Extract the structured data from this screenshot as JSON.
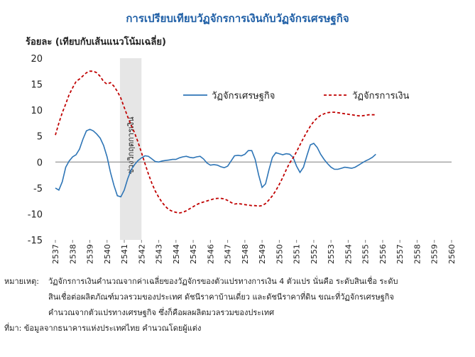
{
  "chart_data": {
    "type": "line",
    "title": "การเปรียบเทียบวัฏจักรการเงินกับวัฏจักรเศรษฐกิจ",
    "ylabel": "ร้อยละ (เทียบกับเส้นแนวโน้มเฉลี่ย)",
    "xlabel": "",
    "ylim": [
      -15,
      20
    ],
    "yticks": [
      -15,
      -10,
      -5,
      0,
      5,
      10,
      15,
      20
    ],
    "xlim": [
      2537,
      2560
    ],
    "categories": [
      "2537",
      "2538",
      "2539",
      "2540",
      "2541",
      "2542",
      "2543",
      "2544",
      "2545",
      "2546",
      "2547",
      "2548",
      "2549",
      "2550",
      "2551",
      "2552",
      "2553",
      "2554",
      "2555",
      "2556",
      "2557",
      "2558",
      "2559",
      "2560"
    ],
    "legend_position": "top-right",
    "grid": false,
    "shaded_region": {
      "label": "ช่วงวิกฤตการเงิน",
      "x_start": 2540.75,
      "x_end": 2542.0,
      "color": "#e6e6e6"
    },
    "series": [
      {
        "name": "วัฏจักรเศรษฐกิจ",
        "color": "#2e75b6",
        "style": "solid",
        "points": [
          [
            2537.0,
            -5.0
          ],
          [
            2537.2,
            -5.4
          ],
          [
            2537.4,
            -3.8
          ],
          [
            2537.6,
            -1.0
          ],
          [
            2537.8,
            0.2
          ],
          [
            2538.0,
            1.0
          ],
          [
            2538.2,
            1.4
          ],
          [
            2538.4,
            2.5
          ],
          [
            2538.6,
            4.4
          ],
          [
            2538.8,
            6.0
          ],
          [
            2539.0,
            6.3
          ],
          [
            2539.2,
            6.0
          ],
          [
            2539.4,
            5.4
          ],
          [
            2539.6,
            4.6
          ],
          [
            2539.8,
            3.2
          ],
          [
            2540.0,
            1.0
          ],
          [
            2540.2,
            -2.0
          ],
          [
            2540.4,
            -4.5
          ],
          [
            2540.6,
            -6.5
          ],
          [
            2540.8,
            -6.7
          ],
          [
            2541.0,
            -5.4
          ],
          [
            2541.2,
            -3.2
          ],
          [
            2541.4,
            -1.5
          ],
          [
            2541.6,
            -0.5
          ],
          [
            2541.8,
            0.3
          ],
          [
            2542.0,
            0.8
          ],
          [
            2542.2,
            1.2
          ],
          [
            2542.4,
            1.1
          ],
          [
            2542.6,
            0.6
          ],
          [
            2542.8,
            0.1
          ],
          [
            2543.0,
            0.0
          ],
          [
            2543.2,
            0.2
          ],
          [
            2543.4,
            0.3
          ],
          [
            2543.6,
            0.4
          ],
          [
            2543.8,
            0.5
          ],
          [
            2544.0,
            0.5
          ],
          [
            2544.2,
            0.8
          ],
          [
            2544.4,
            1.0
          ],
          [
            2544.6,
            1.1
          ],
          [
            2544.8,
            0.9
          ],
          [
            2545.0,
            0.8
          ],
          [
            2545.2,
            1.0
          ],
          [
            2545.4,
            1.1
          ],
          [
            2545.6,
            0.6
          ],
          [
            2545.8,
            -0.2
          ],
          [
            2546.0,
            -0.6
          ],
          [
            2546.2,
            -0.5
          ],
          [
            2546.4,
            -0.6
          ],
          [
            2546.6,
            -0.9
          ],
          [
            2546.8,
            -1.1
          ],
          [
            2547.0,
            -0.8
          ],
          [
            2547.2,
            0.2
          ],
          [
            2547.4,
            1.2
          ],
          [
            2547.6,
            1.3
          ],
          [
            2547.8,
            1.2
          ],
          [
            2548.0,
            1.5
          ],
          [
            2548.2,
            2.2
          ],
          [
            2548.4,
            2.2
          ],
          [
            2548.6,
            0.5
          ],
          [
            2548.8,
            -2.5
          ],
          [
            2549.0,
            -4.9
          ],
          [
            2549.2,
            -4.2
          ],
          [
            2549.4,
            -1.5
          ],
          [
            2549.6,
            0.9
          ],
          [
            2549.8,
            1.8
          ],
          [
            2550.0,
            1.6
          ],
          [
            2550.2,
            1.4
          ],
          [
            2550.4,
            1.6
          ],
          [
            2550.6,
            1.5
          ],
          [
            2550.8,
            0.9
          ],
          [
            2551.0,
            -0.8
          ],
          [
            2551.2,
            -2.0
          ],
          [
            2551.4,
            -1.0
          ],
          [
            2551.6,
            1.2
          ],
          [
            2551.8,
            3.3
          ],
          [
            2552.0,
            3.6
          ],
          [
            2552.2,
            2.8
          ],
          [
            2552.4,
            1.5
          ],
          [
            2552.6,
            0.5
          ],
          [
            2552.8,
            -0.3
          ],
          [
            2553.0,
            -1.0
          ],
          [
            2553.2,
            -1.4
          ],
          [
            2553.4,
            -1.4
          ],
          [
            2553.6,
            -1.2
          ],
          [
            2553.8,
            -1.0
          ],
          [
            2554.0,
            -1.1
          ],
          [
            2554.2,
            -1.2
          ],
          [
            2554.4,
            -1.0
          ],
          [
            2554.6,
            -0.6
          ],
          [
            2554.8,
            -0.2
          ],
          [
            2555.0,
            0.2
          ],
          [
            2555.2,
            0.5
          ],
          [
            2555.4,
            0.9
          ],
          [
            2555.6,
            1.5
          ]
        ]
      },
      {
        "name": "วัฏจักรการเงิน",
        "color": "#c00000",
        "style": "dashed",
        "points": [
          [
            2537.0,
            5.2
          ],
          [
            2537.2,
            7.5
          ],
          [
            2537.4,
            9.5
          ],
          [
            2537.6,
            11.2
          ],
          [
            2537.8,
            13.0
          ],
          [
            2538.0,
            14.3
          ],
          [
            2538.2,
            15.5
          ],
          [
            2538.4,
            16.0
          ],
          [
            2538.6,
            16.6
          ],
          [
            2538.8,
            17.2
          ],
          [
            2539.0,
            17.5
          ],
          [
            2539.2,
            17.5
          ],
          [
            2539.4,
            17.2
          ],
          [
            2539.6,
            16.5
          ],
          [
            2539.8,
            15.5
          ],
          [
            2540.0,
            15.0
          ],
          [
            2540.2,
            15.3
          ],
          [
            2540.4,
            14.6
          ],
          [
            2540.6,
            13.6
          ],
          [
            2540.8,
            12.3
          ],
          [
            2541.0,
            10.5
          ],
          [
            2541.2,
            8.7
          ],
          [
            2541.4,
            7.1
          ],
          [
            2541.6,
            5.6
          ],
          [
            2541.8,
            3.8
          ],
          [
            2542.0,
            1.8
          ],
          [
            2542.2,
            -0.3
          ],
          [
            2542.4,
            -2.3
          ],
          [
            2542.6,
            -4.1
          ],
          [
            2542.8,
            -5.6
          ],
          [
            2543.0,
            -6.8
          ],
          [
            2543.2,
            -7.8
          ],
          [
            2543.4,
            -8.6
          ],
          [
            2543.6,
            -9.2
          ],
          [
            2543.8,
            -9.5
          ],
          [
            2544.0,
            -9.7
          ],
          [
            2544.2,
            -9.8
          ],
          [
            2544.4,
            -9.7
          ],
          [
            2544.6,
            -9.4
          ],
          [
            2544.8,
            -9.0
          ],
          [
            2545.0,
            -8.6
          ],
          [
            2545.2,
            -8.2
          ],
          [
            2545.4,
            -7.9
          ],
          [
            2545.6,
            -7.7
          ],
          [
            2545.8,
            -7.5
          ],
          [
            2546.0,
            -7.3
          ],
          [
            2546.2,
            -7.1
          ],
          [
            2546.4,
            -7.0
          ],
          [
            2546.6,
            -7.0
          ],
          [
            2546.8,
            -7.1
          ],
          [
            2547.0,
            -7.4
          ],
          [
            2547.2,
            -7.8
          ],
          [
            2547.4,
            -8.1
          ],
          [
            2547.6,
            -8.0
          ],
          [
            2547.8,
            -8.1
          ],
          [
            2548.0,
            -8.2
          ],
          [
            2548.2,
            -8.3
          ],
          [
            2548.4,
            -8.4
          ],
          [
            2548.6,
            -8.4
          ],
          [
            2548.8,
            -8.5
          ],
          [
            2549.0,
            -8.4
          ],
          [
            2549.2,
            -8.0
          ],
          [
            2549.4,
            -7.3
          ],
          [
            2549.6,
            -6.5
          ],
          [
            2549.8,
            -5.5
          ],
          [
            2550.0,
            -4.3
          ],
          [
            2550.2,
            -3.0
          ],
          [
            2550.4,
            -1.5
          ],
          [
            2550.6,
            -0.2
          ],
          [
            2550.8,
            0.8
          ],
          [
            2551.0,
            2.0
          ],
          [
            2551.2,
            3.3
          ],
          [
            2551.4,
            4.6
          ],
          [
            2551.6,
            5.8
          ],
          [
            2551.8,
            6.9
          ],
          [
            2552.0,
            7.8
          ],
          [
            2552.2,
            8.5
          ],
          [
            2552.4,
            9.0
          ],
          [
            2552.6,
            9.3
          ],
          [
            2552.8,
            9.5
          ],
          [
            2553.0,
            9.6
          ],
          [
            2553.2,
            9.6
          ],
          [
            2553.4,
            9.5
          ],
          [
            2553.6,
            9.4
          ],
          [
            2553.8,
            9.3
          ],
          [
            2554.0,
            9.2
          ],
          [
            2554.2,
            9.1
          ],
          [
            2554.4,
            9.0
          ],
          [
            2554.6,
            8.9
          ],
          [
            2554.8,
            8.9
          ],
          [
            2555.0,
            9.0
          ],
          [
            2555.2,
            9.1
          ],
          [
            2555.4,
            9.1
          ],
          [
            2555.6,
            9.1
          ]
        ]
      }
    ]
  },
  "notes": {
    "label": "หมายเหตุ:",
    "lines": [
      "วัฏจักรการเงินคำนวณจากค่าเฉลี่ยของวัฏจักรของตัวแปรทางการเงิน 4 ตัวแปร นั่นคือ ระดับสินเชื่อ ระดับ",
      "สินเชื่อต่อผลิตภัณฑ์มวลรวมของประเทศ ดัชนีราคาบ้านเดี่ยว และดัชนีราคาที่ดิน ขณะที่วัฏจักรเศรษฐกิจ",
      "คำนวณจากตัวแปรทางเศรษฐกิจ ซึ่งก็คือผลผลิตมวลรวมของประเทศ"
    ],
    "source": "ที่มา: ข้อมูลจากธนาคารแห่งประเทศไทย คำนวณโดยผู้แต่ง"
  }
}
